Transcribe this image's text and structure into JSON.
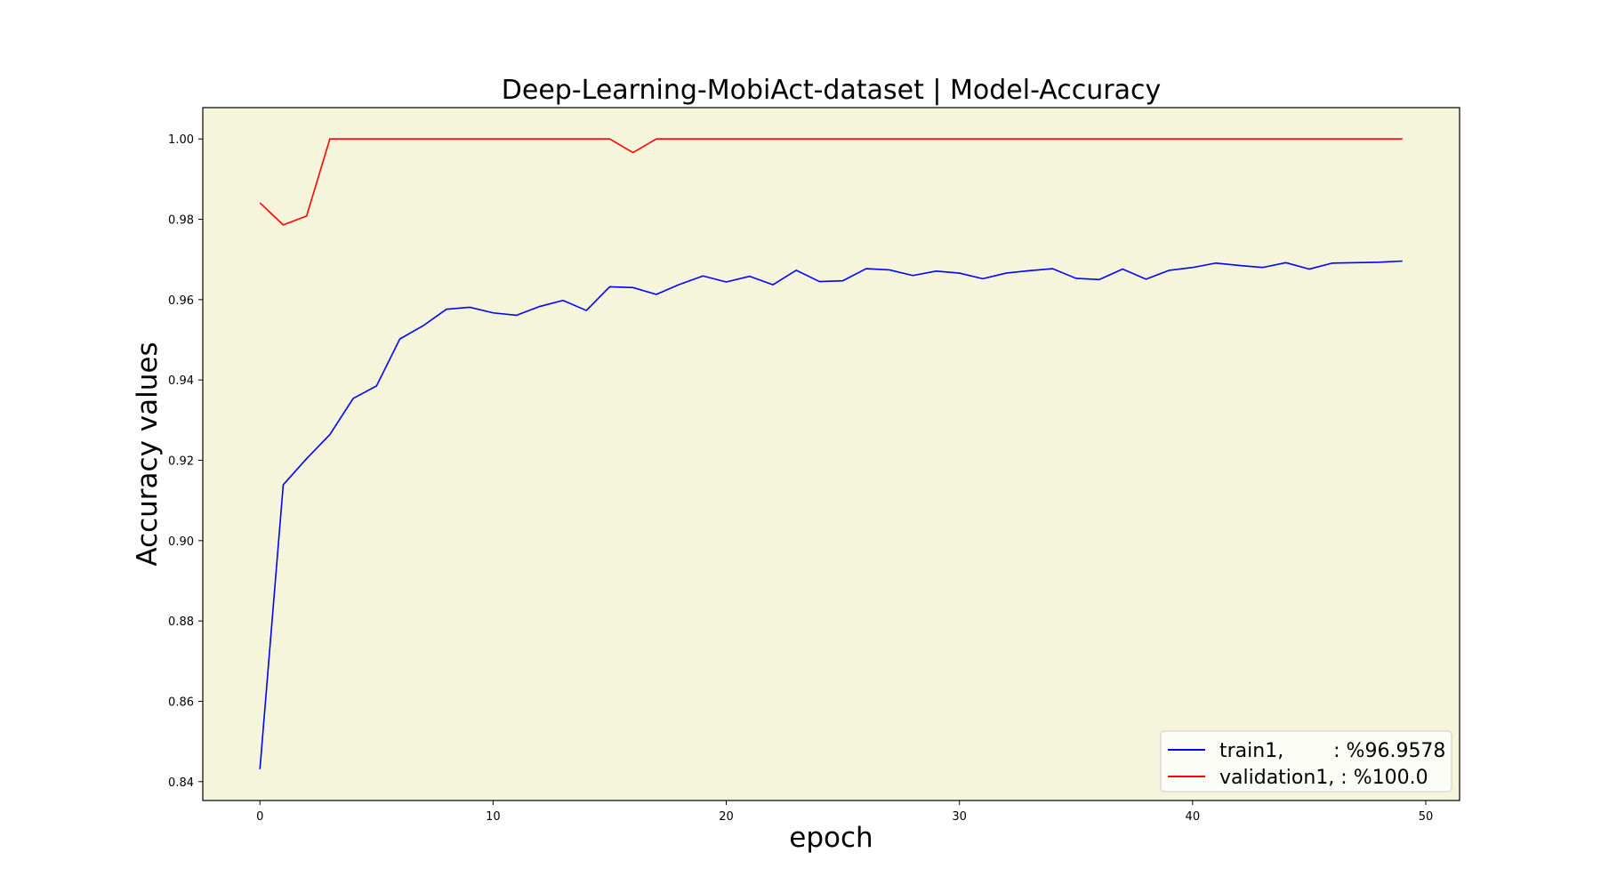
{
  "chart_data": {
    "type": "line",
    "title": "Deep-Learning-MobiAct-dataset  | Model-Accuracy",
    "xlabel": "epoch",
    "ylabel": "Accuracy values",
    "xlim": [
      -2.45,
      51.45
    ],
    "ylim": [
      0.8353,
      1.0078
    ],
    "xticks": [
      0,
      10,
      20,
      30,
      40,
      50
    ],
    "yticks": [
      0.84,
      0.86,
      0.88,
      0.9,
      0.92,
      0.94,
      0.96,
      0.98,
      1.0
    ],
    "ytick_labels": [
      "0.84",
      "0.86",
      "0.88",
      "0.90",
      "0.92",
      "0.94",
      "0.96",
      "0.98",
      "1.00"
    ],
    "background_color": "#f5f5dc",
    "grid": false,
    "legend_position": "lower right",
    "series": [
      {
        "name": "train1,        : %96.9578",
        "color": "#0000ff",
        "x": [
          0,
          1,
          2,
          3,
          4,
          5,
          6,
          7,
          8,
          9,
          10,
          11,
          12,
          13,
          14,
          15,
          16,
          17,
          18,
          19,
          20,
          21,
          22,
          23,
          24,
          25,
          26,
          27,
          28,
          29,
          30,
          31,
          32,
          33,
          34,
          35,
          36,
          37,
          38,
          39,
          40,
          41,
          42,
          43,
          44,
          45,
          46,
          47,
          48,
          49
        ],
        "values": [
          0.8431,
          0.9139,
          0.9204,
          0.9264,
          0.9354,
          0.9385,
          0.9502,
          0.9535,
          0.9576,
          0.9581,
          0.9567,
          0.9561,
          0.9583,
          0.9598,
          0.9573,
          0.9632,
          0.963,
          0.9613,
          0.9638,
          0.9659,
          0.9644,
          0.9658,
          0.9637,
          0.9673,
          0.9645,
          0.9647,
          0.9677,
          0.9674,
          0.966,
          0.9671,
          0.9666,
          0.9652,
          0.9666,
          0.9672,
          0.9677,
          0.9653,
          0.965,
          0.9676,
          0.9651,
          0.9673,
          0.968,
          0.9691,
          0.9685,
          0.968,
          0.9692,
          0.9676,
          0.9691,
          0.9692,
          0.9693,
          0.9696
        ]
      },
      {
        "name": "validation1, : %100.0",
        "color": "#ff0000",
        "x": [
          0,
          1,
          2,
          3,
          4,
          5,
          6,
          7,
          8,
          9,
          10,
          11,
          12,
          13,
          14,
          15,
          16,
          17,
          18,
          19,
          20,
          21,
          22,
          23,
          24,
          25,
          26,
          27,
          28,
          29,
          30,
          31,
          32,
          33,
          34,
          35,
          36,
          37,
          38,
          39,
          40,
          41,
          42,
          43,
          44,
          45,
          46,
          47,
          48,
          49
        ],
        "values": [
          0.9841,
          0.9786,
          0.9808,
          1.0,
          1.0,
          1.0,
          1.0,
          1.0,
          1.0,
          1.0,
          1.0,
          1.0,
          1.0,
          1.0,
          1.0,
          1.0,
          0.9966,
          1.0,
          1.0,
          1.0,
          1.0,
          1.0,
          1.0,
          1.0,
          1.0,
          1.0,
          1.0,
          1.0,
          1.0,
          1.0,
          1.0,
          1.0,
          1.0,
          1.0,
          1.0,
          1.0,
          1.0,
          1.0,
          1.0,
          1.0,
          1.0,
          1.0,
          1.0,
          1.0,
          1.0,
          1.0,
          1.0,
          1.0,
          1.0,
          1.0
        ]
      }
    ]
  }
}
